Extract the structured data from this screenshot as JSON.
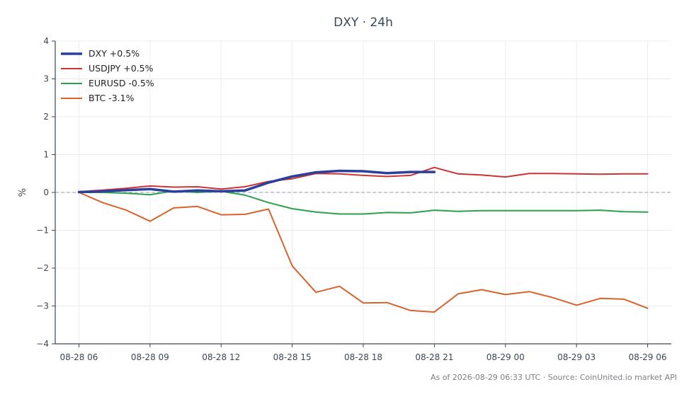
{
  "chart_data": {
    "type": "line",
    "title": "DXY · 24h",
    "xlabel": "",
    "ylabel": "%",
    "ylim": [
      -4,
      4
    ],
    "yticks": [
      4,
      3,
      2,
      1,
      0,
      -1,
      -2,
      -3,
      -4
    ],
    "ytick_labels": [
      "4",
      "3",
      "2",
      "1",
      "0",
      "−1",
      "−2",
      "−3",
      "−4"
    ],
    "xlim": [
      "2026-08-28 05:00",
      "2026-08-29 07:00"
    ],
    "xticks": [
      "2026-08-28 06:00",
      "2026-08-28 09:00",
      "2026-08-28 12:00",
      "2026-08-28 15:00",
      "2026-08-28 18:00",
      "2026-08-28 21:00",
      "2026-08-29 00:00",
      "2026-08-29 03:00",
      "2026-08-29 06:00"
    ],
    "xtick_labels": [
      "08-28 06",
      "08-28 09",
      "08-28 12",
      "08-28 15",
      "08-28 18",
      "08-28 21",
      "08-29 00",
      "08-29 03",
      "08-29 06"
    ],
    "grid": true,
    "zero_line": true,
    "legend_position": "top-left",
    "x": [
      "2026-08-28 06:00",
      "2026-08-28 07:00",
      "2026-08-28 08:00",
      "2026-08-28 09:00",
      "2026-08-28 10:00",
      "2026-08-28 11:00",
      "2026-08-28 12:00",
      "2026-08-28 13:00",
      "2026-08-28 14:00",
      "2026-08-28 15:00",
      "2026-08-28 16:00",
      "2026-08-28 17:00",
      "2026-08-28 18:00",
      "2026-08-28 19:00",
      "2026-08-28 20:00",
      "2026-08-28 21:00",
      "2026-08-28 22:00",
      "2026-08-28 23:00",
      "2026-08-29 00:00",
      "2026-08-29 01:00",
      "2026-08-29 02:00",
      "2026-08-29 03:00",
      "2026-08-29 04:00",
      "2026-08-29 05:00",
      "2026-08-29 06:00"
    ],
    "series": [
      {
        "name": "DXY +0.5%",
        "color": "#2a3f9e",
        "width": 3.5,
        "values": [
          0.01,
          0.03,
          0.06,
          0.09,
          0.02,
          0.05,
          0.03,
          0.05,
          0.26,
          0.42,
          0.53,
          0.57,
          0.56,
          0.51,
          0.54,
          0.54,
          null,
          null,
          null,
          null,
          null,
          null,
          null,
          null,
          null
        ]
      },
      {
        "name": "USDJPY +0.5%",
        "color": "#cc3333",
        "width": 2,
        "values": [
          0.02,
          0.06,
          0.11,
          0.17,
          0.14,
          0.15,
          0.09,
          0.15,
          0.29,
          0.36,
          0.5,
          0.49,
          0.45,
          0.42,
          0.45,
          0.66,
          0.49,
          0.46,
          0.41,
          0.5,
          0.5,
          0.49,
          0.48,
          0.49,
          0.49
        ]
      },
      {
        "name": "EURUSD -0.5%",
        "color": "#2ca04a",
        "width": 2,
        "values": [
          0.0,
          0.0,
          -0.02,
          -0.06,
          0.04,
          0.0,
          0.03,
          -0.07,
          -0.27,
          -0.43,
          -0.52,
          -0.57,
          -0.57,
          -0.53,
          -0.54,
          -0.47,
          -0.5,
          -0.48,
          -0.48,
          -0.48,
          -0.48,
          -0.48,
          -0.47,
          -0.51,
          -0.52
        ]
      },
      {
        "name": "BTC -3.1%",
        "color": "#d9622b",
        "width": 2,
        "values": [
          0.0,
          -0.27,
          -0.47,
          -0.76,
          -0.41,
          -0.37,
          -0.59,
          -0.58,
          -0.44,
          -1.94,
          -2.64,
          -2.48,
          -2.92,
          -2.91,
          -3.12,
          -3.16,
          -2.68,
          -2.57,
          -2.7,
          -2.62,
          -2.78,
          -2.98,
          -2.8,
          -2.82,
          -3.06
        ]
      }
    ]
  },
  "footer": "As of 2026-08-29 06:33 UTC · Source: CoinUnited.io market API"
}
